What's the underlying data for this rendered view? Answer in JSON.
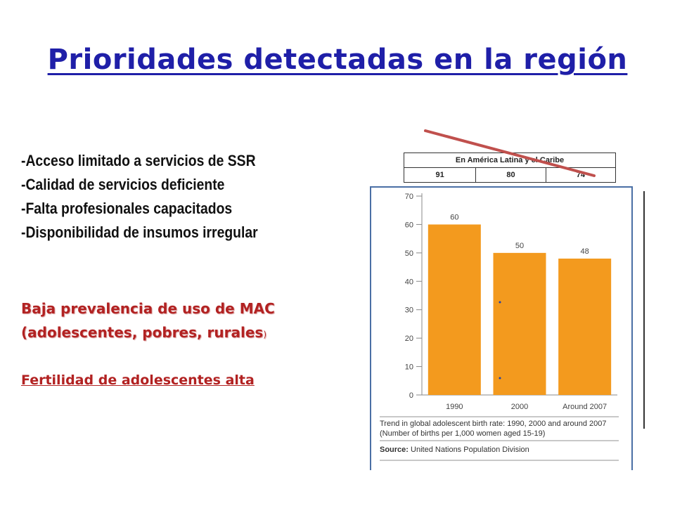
{
  "slide": {
    "title": "Prioridades detectadas en la región",
    "bullets": [
      "-Acceso limitado a servicios de SSR",
      "-Calidad de servicios deficiente",
      "-Falta profesionales capacitados",
      "-Disponibilidad de insumos irregular"
    ],
    "highlight_line1": "Baja prevalencia de uso de MAC",
    "highlight_line2": "(adolescentes, pobres, rurales",
    "highlight_paren": ")",
    "fertility": "Fertilidad de adolescentes alta"
  },
  "table": {
    "header": "En América Latina y el Caribe",
    "values": [
      "91",
      "80",
      "74"
    ]
  },
  "chart_data": {
    "type": "bar",
    "categories": [
      "1990",
      "2000",
      "Around 2007"
    ],
    "values": [
      60,
      50,
      48
    ],
    "data_labels": [
      "60",
      "50",
      "48"
    ],
    "yticks": [
      "0",
      "10",
      "20",
      "30",
      "40",
      "50",
      "60",
      "70"
    ],
    "ylim": [
      0,
      70
    ],
    "title": "",
    "xlabel": "",
    "ylabel": "",
    "grid": false,
    "bar_color": "#f39a1e",
    "caption_line1": "Trend in global adolescent birth rate: 1990, 2000 and around 2007",
    "caption_line2": "(Number of births per 1,000 women aged 15-19)",
    "source_label": "Source:",
    "source_text": "United Nations Population Division"
  },
  "colors": {
    "title": "#1f1fa8",
    "highlight": "#b22222",
    "bar": "#f39a1e",
    "trend_line": "#c0504d",
    "frame": "#4a6fa5"
  }
}
